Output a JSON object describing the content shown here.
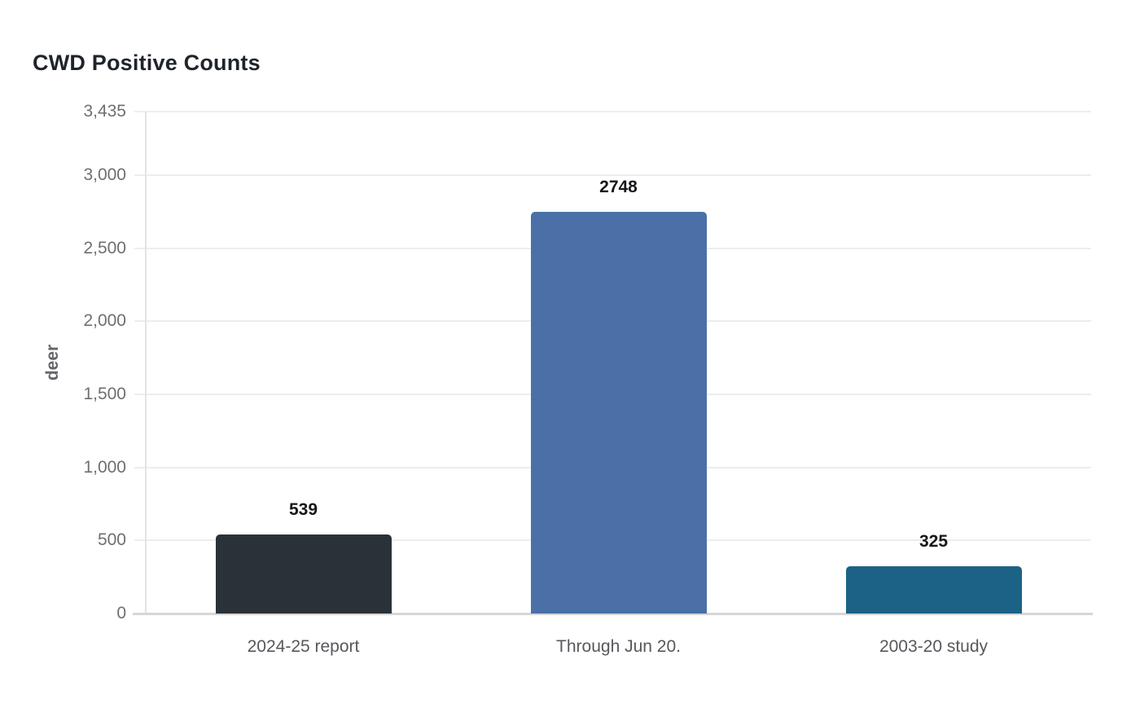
{
  "title": "CWD Positive Counts",
  "chart_data": {
    "type": "bar",
    "title": "CWD Positive Counts",
    "xlabel": "",
    "ylabel": "deer",
    "categories": [
      "2024-25 report",
      "Through Jun 20.",
      "2003-20 study"
    ],
    "values": [
      539,
      2748,
      325
    ],
    "value_labels": [
      "539",
      "2748",
      "325"
    ],
    "bar_colors": [
      "#2b3237",
      "#4a70a7",
      "#1b6286"
    ],
    "ylim": [
      0,
      3435
    ],
    "yticks": [
      {
        "value": 3435,
        "label": "3,435"
      },
      {
        "value": 3000,
        "label": "3,000"
      },
      {
        "value": 2500,
        "label": "2,500"
      },
      {
        "value": 2000,
        "label": "2,000"
      },
      {
        "value": 1500,
        "label": "1,500"
      },
      {
        "value": 1000,
        "label": "1,000"
      },
      {
        "value": 500,
        "label": "500"
      },
      {
        "value": 0,
        "label": "0"
      }
    ],
    "grid": true,
    "legend": false,
    "colors": {
      "gridline": "#ededed",
      "baseline": "#d6d6d6",
      "y_axis_line": "#e3e3e3",
      "tick_text": "#6e6f71",
      "category_text": "#56585c",
      "value_text": "#16181b",
      "title_text": "#1f242a",
      "ylabel_text": "#64666a",
      "background": "#ffffff"
    }
  }
}
